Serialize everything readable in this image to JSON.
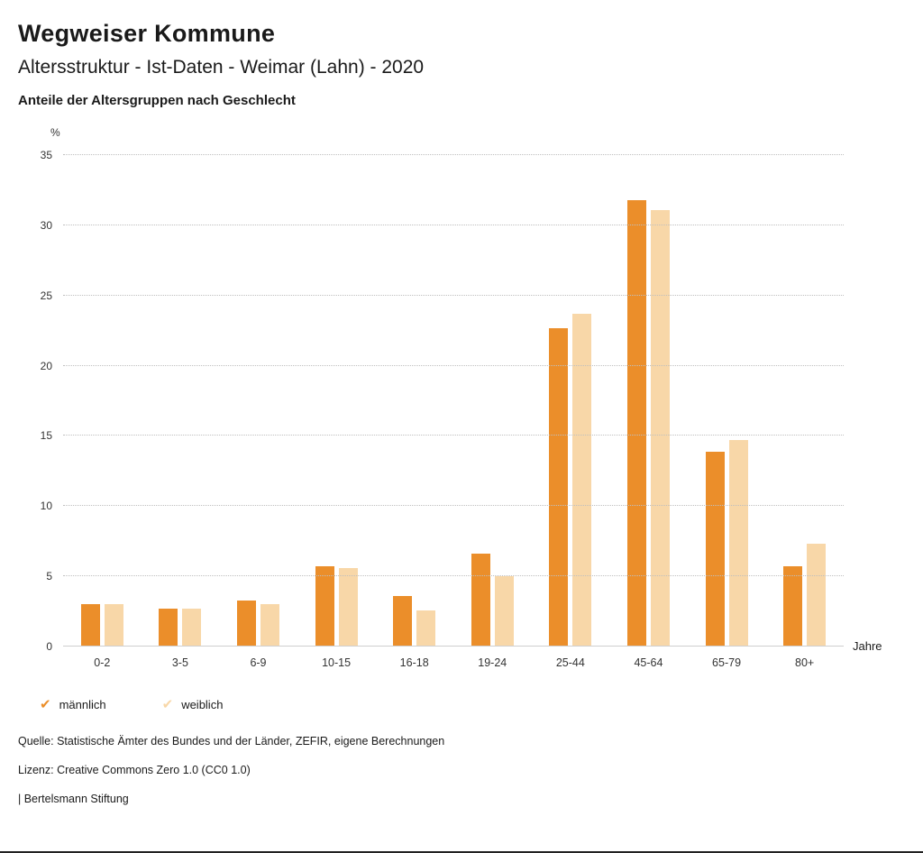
{
  "header": {
    "title": "Wegweiser Kommune",
    "subtitle": "Altersstruktur - Ist-Daten - Weimar (Lahn) - 2020",
    "chart_heading": "Anteile der Altersgruppen nach Geschlecht"
  },
  "chart_data": {
    "type": "bar",
    "categories": [
      "0-2",
      "3-5",
      "6-9",
      "10-15",
      "16-18",
      "19-24",
      "25-44",
      "45-64",
      "65-79",
      "80+"
    ],
    "series": [
      {
        "name": "männlich",
        "color": "#EB8E2A",
        "values": [
          3.0,
          2.7,
          3.3,
          5.7,
          3.6,
          6.6,
          22.7,
          31.8,
          13.9,
          5.7
        ]
      },
      {
        "name": "weiblich",
        "color": "#F8D7A8",
        "values": [
          3.0,
          2.7,
          3.0,
          5.6,
          2.6,
          5.0,
          23.7,
          31.1,
          14.7,
          7.3
        ]
      }
    ],
    "title": "Anteile der Altersgruppen nach Geschlecht",
    "xlabel": "Jahre",
    "ylabel": "%",
    "ylim": [
      0,
      35
    ],
    "ytick_interval": 5,
    "grid": true,
    "legend_position": "bottom",
    "legend_check_glyph": "✔"
  },
  "footer": {
    "source": "Quelle: Statistische Ämter des Bundes und der Länder, ZEFIR, eigene Berechnungen",
    "license": "Lizenz: Creative Commons Zero 1.0 (CC0 1.0)",
    "attribution": "| Bertelsmann Stiftung"
  }
}
